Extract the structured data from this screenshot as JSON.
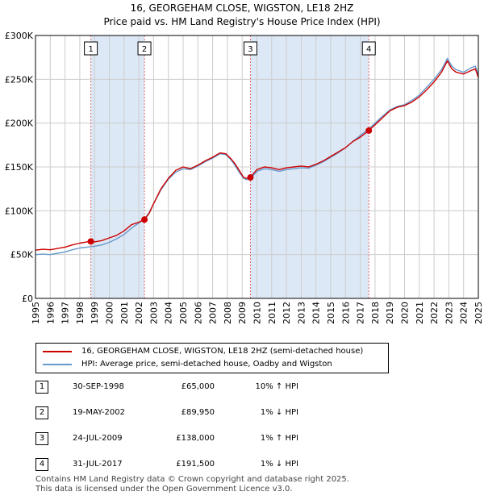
{
  "title_line1": "16, GEORGEHAM CLOSE, WIGSTON, LE18 2HZ",
  "title_line2": "Price paid vs. HM Land Registry's House Price Index (HPI)",
  "colors": {
    "price_line": "#cc0000",
    "hpi_line": "#6699cc",
    "shade": "#dde8f6",
    "marker_line": "#e06666",
    "grid": "#cccccc"
  },
  "chart_data": {
    "type": "line",
    "x_range": [
      1995.0,
      2025.0
    ],
    "ylim": [
      0,
      300000
    ],
    "y_ticks": [
      0,
      50000,
      100000,
      150000,
      200000,
      250000,
      300000
    ],
    "y_tick_labels": [
      "£0",
      "£50K",
      "£100K",
      "£150K",
      "£200K",
      "£250K",
      "£300K"
    ],
    "x_ticks": [
      1995,
      1996,
      1997,
      1998,
      1999,
      2000,
      2001,
      2002,
      2003,
      2004,
      2005,
      2006,
      2007,
      2008,
      2009,
      2010,
      2011,
      2012,
      2013,
      2014,
      2015,
      2016,
      2017,
      2018,
      2019,
      2020,
      2021,
      2022,
      2023,
      2024,
      2025
    ],
    "grid": true,
    "shaded_periods": [
      [
        1998.75,
        2002.38
      ],
      [
        2009.56,
        2017.58
      ]
    ],
    "series": [
      {
        "name": "16, GEORGEHAM CLOSE, WIGSTON, LE18 2HZ (semi-detached house)",
        "points": [
          [
            1995.0,
            55000
          ],
          [
            1995.5,
            56000
          ],
          [
            1996.0,
            55500
          ],
          [
            1996.5,
            57000
          ],
          [
            1997.0,
            58500
          ],
          [
            1997.5,
            61000
          ],
          [
            1998.0,
            63000
          ],
          [
            1998.5,
            64500
          ],
          [
            1998.75,
            65000
          ],
          [
            1999.0,
            64500
          ],
          [
            1999.5,
            66000
          ],
          [
            2000.0,
            69000
          ],
          [
            2000.5,
            72000
          ],
          [
            2001.0,
            77000
          ],
          [
            2001.5,
            84000
          ],
          [
            2002.0,
            87000
          ],
          [
            2002.38,
            89950
          ],
          [
            2002.7,
            97000
          ],
          [
            2003.0,
            108000
          ],
          [
            2003.5,
            125000
          ],
          [
            2004.0,
            137000
          ],
          [
            2004.5,
            146000
          ],
          [
            2005.0,
            150000
          ],
          [
            2005.5,
            148000
          ],
          [
            2006.0,
            152000
          ],
          [
            2006.5,
            157000
          ],
          [
            2007.0,
            161000
          ],
          [
            2007.5,
            166000
          ],
          [
            2007.9,
            165000
          ],
          [
            2008.2,
            160000
          ],
          [
            2008.5,
            154000
          ],
          [
            2008.8,
            146000
          ],
          [
            2009.1,
            138000
          ],
          [
            2009.3,
            137000
          ],
          [
            2009.56,
            138000
          ],
          [
            2009.8,
            143000
          ],
          [
            2010.0,
            147000
          ],
          [
            2010.5,
            150000
          ],
          [
            2011.0,
            149000
          ],
          [
            2011.5,
            147000
          ],
          [
            2012.0,
            149000
          ],
          [
            2012.5,
            150000
          ],
          [
            2013.0,
            151000
          ],
          [
            2013.5,
            150000
          ],
          [
            2014.0,
            153000
          ],
          [
            2014.5,
            157000
          ],
          [
            2015.0,
            162000
          ],
          [
            2015.5,
            167000
          ],
          [
            2016.0,
            172000
          ],
          [
            2016.5,
            179000
          ],
          [
            2017.0,
            184000
          ],
          [
            2017.58,
            191500
          ],
          [
            2018.0,
            198000
          ],
          [
            2018.5,
            206000
          ],
          [
            2019.0,
            214000
          ],
          [
            2019.5,
            218000
          ],
          [
            2020.0,
            220000
          ],
          [
            2020.5,
            224000
          ],
          [
            2021.0,
            230000
          ],
          [
            2021.5,
            238000
          ],
          [
            2022.0,
            247000
          ],
          [
            2022.5,
            258000
          ],
          [
            2022.9,
            271000
          ],
          [
            2023.2,
            262000
          ],
          [
            2023.5,
            258000
          ],
          [
            2024.0,
            256000
          ],
          [
            2024.5,
            260000
          ],
          [
            2024.8,
            262000
          ],
          [
            2025.0,
            252000
          ]
        ]
      },
      {
        "name": "HPI: Average price, semi-detached house, Oadby and Wigston",
        "points": [
          [
            1995.0,
            50000
          ],
          [
            1995.5,
            50500
          ],
          [
            1996.0,
            50000
          ],
          [
            1996.5,
            51500
          ],
          [
            1997.0,
            53000
          ],
          [
            1997.5,
            55500
          ],
          [
            1998.0,
            57500
          ],
          [
            1998.5,
            58500
          ],
          [
            1998.75,
            59000
          ],
          [
            1999.0,
            59500
          ],
          [
            1999.5,
            61000
          ],
          [
            2000.0,
            64000
          ],
          [
            2000.5,
            68000
          ],
          [
            2001.0,
            73000
          ],
          [
            2001.5,
            80000
          ],
          [
            2002.0,
            86000
          ],
          [
            2002.38,
            90800
          ],
          [
            2002.7,
            98000
          ],
          [
            2003.0,
            108000
          ],
          [
            2003.5,
            124000
          ],
          [
            2004.0,
            136000
          ],
          [
            2004.5,
            144000
          ],
          [
            2005.0,
            148000
          ],
          [
            2005.5,
            147000
          ],
          [
            2006.0,
            151000
          ],
          [
            2006.5,
            156000
          ],
          [
            2007.0,
            160000
          ],
          [
            2007.5,
            165000
          ],
          [
            2007.9,
            164000
          ],
          [
            2008.2,
            159000
          ],
          [
            2008.5,
            152000
          ],
          [
            2008.8,
            144000
          ],
          [
            2009.1,
            137000
          ],
          [
            2009.3,
            135500
          ],
          [
            2009.56,
            136600
          ],
          [
            2009.8,
            141000
          ],
          [
            2010.0,
            145000
          ],
          [
            2010.5,
            148000
          ],
          [
            2011.0,
            147000
          ],
          [
            2011.5,
            145000
          ],
          [
            2012.0,
            147000
          ],
          [
            2012.5,
            148000
          ],
          [
            2013.0,
            149000
          ],
          [
            2013.5,
            148500
          ],
          [
            2014.0,
            152000
          ],
          [
            2014.5,
            156000
          ],
          [
            2015.0,
            161000
          ],
          [
            2015.5,
            166000
          ],
          [
            2016.0,
            172000
          ],
          [
            2016.5,
            179000
          ],
          [
            2017.0,
            186000
          ],
          [
            2017.58,
            193400
          ],
          [
            2018.0,
            200000
          ],
          [
            2018.5,
            208000
          ],
          [
            2019.0,
            215000
          ],
          [
            2019.5,
            219000
          ],
          [
            2020.0,
            221000
          ],
          [
            2020.5,
            226000
          ],
          [
            2021.0,
            232000
          ],
          [
            2021.5,
            241000
          ],
          [
            2022.0,
            250000
          ],
          [
            2022.5,
            261000
          ],
          [
            2022.9,
            274000
          ],
          [
            2023.2,
            265000
          ],
          [
            2023.5,
            261000
          ],
          [
            2024.0,
            258000
          ],
          [
            2024.5,
            263000
          ],
          [
            2024.8,
            265000
          ],
          [
            2025.0,
            255000
          ]
        ]
      }
    ],
    "sale_markers": [
      {
        "label": "1",
        "x": 1998.75,
        "y": 65000
      },
      {
        "label": "2",
        "x": 2002.38,
        "y": 89950
      },
      {
        "label": "3",
        "x": 2009.56,
        "y": 138000
      },
      {
        "label": "4",
        "x": 2017.58,
        "y": 191500
      }
    ]
  },
  "legend": {
    "price_label": "16, GEORGEHAM CLOSE, WIGSTON, LE18 2HZ (semi-detached house)",
    "hpi_label": "HPI: Average price, semi-detached house, Oadby and Wigston"
  },
  "sales": [
    {
      "num": "1",
      "date": "30-SEP-1998",
      "price": "£65,000",
      "hpi": "10% ↑ HPI"
    },
    {
      "num": "2",
      "date": "19-MAY-2002",
      "price": "£89,950",
      "hpi": "1% ↓ HPI"
    },
    {
      "num": "3",
      "date": "24-JUL-2009",
      "price": "£138,000",
      "hpi": "1% ↑ HPI"
    },
    {
      "num": "4",
      "date": "31-JUL-2017",
      "price": "£191,500",
      "hpi": "1% ↓ HPI"
    }
  ],
  "footer": {
    "line1": "Contains HM Land Registry data © Crown copyright and database right 2025.",
    "line2": "This data is licensed under the Open Government Licence v3.0."
  }
}
